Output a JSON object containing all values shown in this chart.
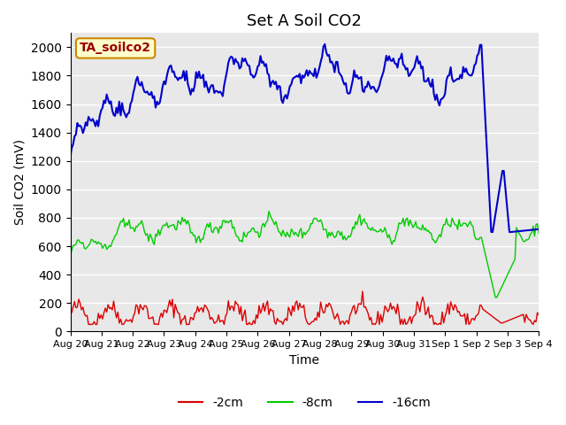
{
  "title": "Set A Soil CO2",
  "xlabel": "Time",
  "ylabel": "Soil CO2 (mV)",
  "legend_label": "TA_soilco2",
  "legend_box_color": "#ffffcc",
  "legend_box_edge": "#cc8800",
  "legend_text_color": "#990000",
  "background_color": "#e8e8e8",
  "series": [
    {
      "label": "-2cm",
      "color": "#dd0000"
    },
    {
      "label": "-8cm",
      "color": "#00cc00"
    },
    {
      "label": "-16cm",
      "color": "#0000cc"
    }
  ],
  "xtick_labels": [
    "Aug 20",
    "Aug 21",
    "Aug 22",
    "Aug 23",
    "Aug 24",
    "Aug 25",
    "Aug 26",
    "Aug 27",
    "Aug 28",
    "Aug 29",
    "Aug 30",
    "Aug 31",
    "Sep 1",
    "Sep 2",
    "Sep 3",
    "Sep 4"
  ],
  "ylim": [
    0,
    2100
  ],
  "yticks": [
    0,
    200,
    400,
    600,
    800,
    1000,
    1200,
    1400,
    1600,
    1800,
    2000
  ],
  "num_points": 336,
  "days": 16
}
